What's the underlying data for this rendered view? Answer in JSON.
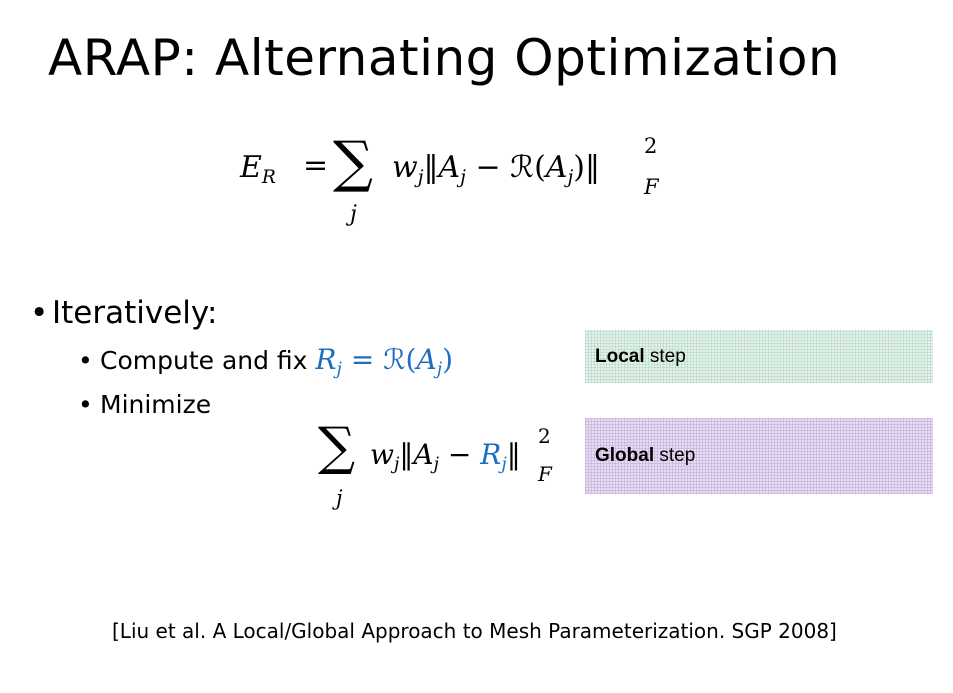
{
  "slide": {
    "title": "ARAP: Alternating Optimization",
    "energy": {
      "lhs": "E",
      "lhs_sub": "R",
      "eq": "=",
      "sum": "∑",
      "sum_index": "j",
      "w": "w",
      "w_sub": "j",
      "norm_open": "‖",
      "A": "A",
      "A_sub": "j",
      "minus": "−",
      "R_op": "ℛ",
      "paren_open": "(",
      "A2": "A",
      "A2_sub": "j",
      "paren_close": ")",
      "norm_close": "‖",
      "power": "2",
      "frob": "F"
    },
    "bullets": {
      "level1": "Iteratively:",
      "compute_text": "Compute and fix ",
      "compute_math": {
        "R": "R",
        "R_sub": "j",
        "eq": "=",
        "R_op": "ℛ",
        "open": "(",
        "A": "A",
        "A_sub": "j",
        "close": ")"
      },
      "minimize_text": "Minimize"
    },
    "minimize_formula": {
      "sum": "∑",
      "sum_index": "j",
      "w": "w",
      "w_sub": "j",
      "norm_open": "‖",
      "A": "A",
      "A_sub": "j",
      "minus": "−",
      "R": "R",
      "R_sub": "j",
      "norm_close": "‖",
      "power": "2",
      "frob": "F"
    },
    "steps": {
      "local_bold": "Local",
      "local_rest": " step",
      "global_bold": "Global",
      "global_rest": " step"
    },
    "citation": "[Liu et al. A Local/Global Approach to Mesh Parameterization. SGP 2008]",
    "colors": {
      "math_blue": "#1f6fbf",
      "local_box": "#e4f2eb",
      "global_box": "#e6dbf0"
    }
  }
}
